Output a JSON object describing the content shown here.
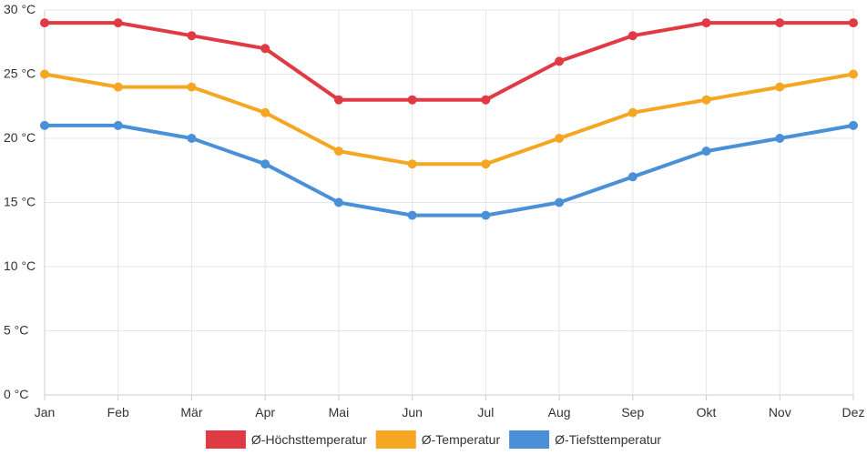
{
  "chart_data": {
    "type": "line",
    "categories": [
      "Jan",
      "Feb",
      "Mär",
      "Apr",
      "Mai",
      "Jun",
      "Jul",
      "Aug",
      "Sep",
      "Okt",
      "Nov",
      "Dez"
    ],
    "yticks": [
      "0 °C",
      "5 °C",
      "10 °C",
      "15 °C",
      "20 °C",
      "25 °C",
      "30 °C"
    ],
    "ylim": [
      0,
      30
    ],
    "grid": true,
    "legend_position": "bottom",
    "series": [
      {
        "name": "Ø-Höchsttemperatur",
        "color": "#e03b45",
        "values": [
          29,
          29,
          28,
          27,
          23,
          23,
          23,
          26,
          28,
          29,
          29,
          29
        ]
      },
      {
        "name": "Ø-Temperatur",
        "color": "#f5a623",
        "values": [
          25,
          24,
          24,
          22,
          19,
          18,
          18,
          20,
          22,
          23,
          24,
          25
        ]
      },
      {
        "name": "Ø-Tiefsttemperatur",
        "color": "#4a90d9",
        "values": [
          21,
          21,
          20,
          18,
          15,
          14,
          14,
          15,
          17,
          19,
          20,
          21
        ]
      }
    ]
  }
}
